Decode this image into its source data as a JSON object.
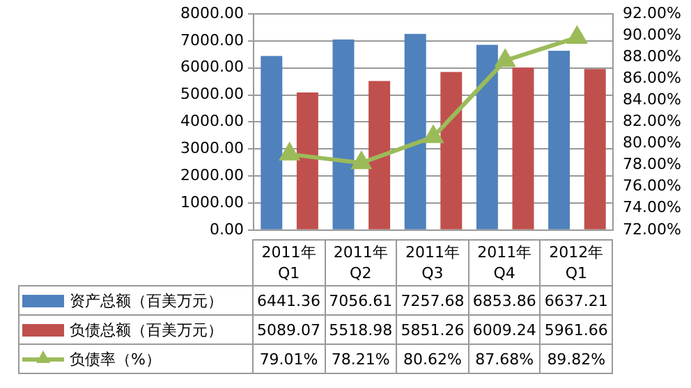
{
  "chart_data": {
    "type": "bar",
    "categories": [
      "2011年Q1",
      "2011年Q2",
      "2011年Q3",
      "2011年Q4",
      "2012年Q1"
    ],
    "series": [
      {
        "name": "资产总额（百美万元）",
        "color": "#4f81bd",
        "values": [
          6441.36,
          7056.61,
          7257.68,
          6853.86,
          6637.21
        ],
        "value_labels": [
          "6441.36",
          "7056.61",
          "7257.68",
          "6853.86",
          "6637.21"
        ]
      },
      {
        "name": "负债总额（百美万元）",
        "color": "#c0504d",
        "values": [
          5089.07,
          5518.98,
          5851.26,
          6009.24,
          5961.66
        ],
        "value_labels": [
          "5089.07",
          "5518.98",
          "5851.26",
          "6009.24",
          "5961.66"
        ]
      },
      {
        "name": "负债率（%）",
        "type": "line",
        "axis": "y2",
        "color": "#9bbb59",
        "marker": "triangle",
        "values": [
          79.01,
          78.21,
          80.62,
          87.68,
          89.82
        ],
        "value_labels": [
          "79.01%",
          "78.21%",
          "80.62%",
          "87.68%",
          "89.82%"
        ]
      }
    ],
    "ylim": [
      0,
      8000
    ],
    "yticks": [
      {
        "value": 0,
        "label": "0.00"
      },
      {
        "value": 1000,
        "label": "1000.00"
      },
      {
        "value": 2000,
        "label": "2000.00"
      },
      {
        "value": 3000,
        "label": "3000.00"
      },
      {
        "value": 4000,
        "label": "4000.00"
      },
      {
        "value": 5000,
        "label": "5000.00"
      },
      {
        "value": 6000,
        "label": "6000.00"
      },
      {
        "value": 7000,
        "label": "7000.00"
      },
      {
        "value": 8000,
        "label": "8000.00"
      }
    ],
    "y2lim": [
      72,
      92
    ],
    "y2ticks": [
      {
        "value": 72,
        "label": "72.00%"
      },
      {
        "value": 74,
        "label": "74.00%"
      },
      {
        "value": 76,
        "label": "76.00%"
      },
      {
        "value": 78,
        "label": "78.00%"
      },
      {
        "value": 80,
        "label": "80.00%"
      },
      {
        "value": 82,
        "label": "82.00%"
      },
      {
        "value": 84,
        "label": "84.00%"
      },
      {
        "value": 86,
        "label": "86.00%"
      },
      {
        "value": 88,
        "label": "88.00%"
      },
      {
        "value": 90,
        "label": "90.00%"
      },
      {
        "value": 92,
        "label": "92.00%"
      }
    ],
    "grid": "y",
    "legend": "bottom",
    "line_style": "solid"
  }
}
